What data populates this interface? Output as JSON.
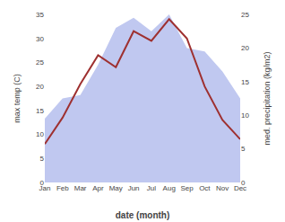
{
  "chart_data": {
    "type": "line",
    "xlabel": "date (month)",
    "ylabel": "max temp (C)",
    "y2label": "med. precipitation (kg/m2)",
    "categories": [
      "Jan",
      "Feb",
      "Mar",
      "Apr",
      "May",
      "Jun",
      "Jul",
      "Aug",
      "Sep",
      "Oct",
      "Nov",
      "Dec"
    ],
    "series": [
      {
        "type": "area",
        "axis": "y2",
        "color": "#c0c8f0",
        "values": [
          9.5,
          12.5,
          13.0,
          17.5,
          23.0,
          24.5,
          22.5,
          25.0,
          20.0,
          19.5,
          16.5,
          12.5
        ]
      },
      {
        "type": "line",
        "color": "#9e3030",
        "values": [
          8.0,
          13.5,
          20.5,
          26.5,
          24.0,
          31.5,
          29.5,
          34.0,
          30.0,
          20.0,
          13.0,
          9.0
        ]
      }
    ],
    "ylim": [
      0,
      35
    ],
    "yticks": [
      0,
      5,
      10,
      15,
      20,
      25,
      30,
      35
    ],
    "y2lim": [
      0,
      25
    ],
    "y2ticks": [
      0,
      5,
      10,
      15,
      20,
      25
    ],
    "grid": false
  }
}
